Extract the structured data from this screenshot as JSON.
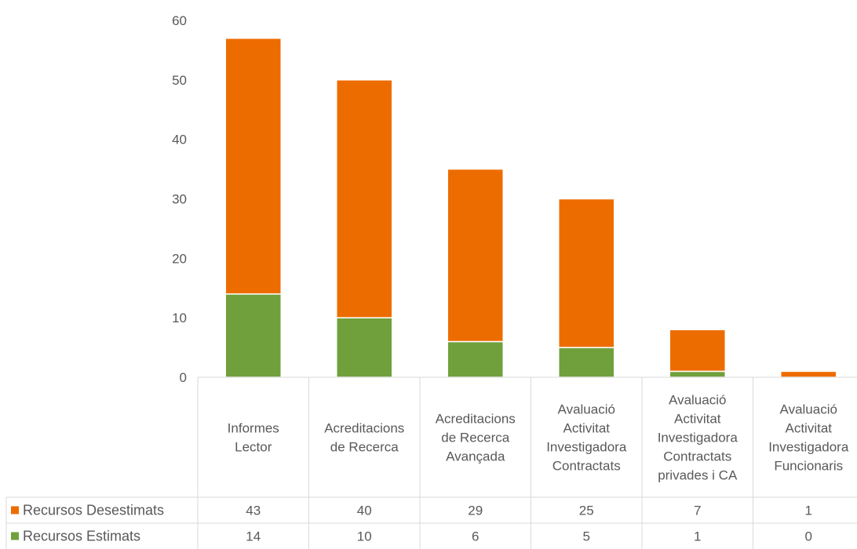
{
  "chart_data": {
    "type": "bar",
    "stacked": true,
    "categories": [
      [
        "Informes",
        "Lector"
      ],
      [
        "Acreditacions",
        "de Recerca"
      ],
      [
        "Acreditacions",
        "de Recerca",
        "Avançada"
      ],
      [
        "Avaluació",
        "Activitat",
        "Investigadora",
        "Contractats"
      ],
      [
        "Avaluació",
        "Activitat",
        "Investigadora",
        "Contractats",
        "privades i CA"
      ],
      [
        "Avaluació",
        "Activitat",
        "Investigadora",
        "Funcionaris"
      ]
    ],
    "series": [
      {
        "name": "Recursos Desestimats",
        "color": "#ed6c00",
        "values": [
          43,
          40,
          29,
          25,
          7,
          1
        ]
      },
      {
        "name": "Recursos Estimats",
        "color": "#70a03c",
        "values": [
          14,
          10,
          6,
          5,
          1,
          0
        ]
      }
    ],
    "ylim": [
      0,
      60
    ],
    "yticks": [
      "0",
      "10",
      "20",
      "30",
      "40",
      "50",
      "60"
    ],
    "legend_position": "data-table-left",
    "grid": false
  }
}
